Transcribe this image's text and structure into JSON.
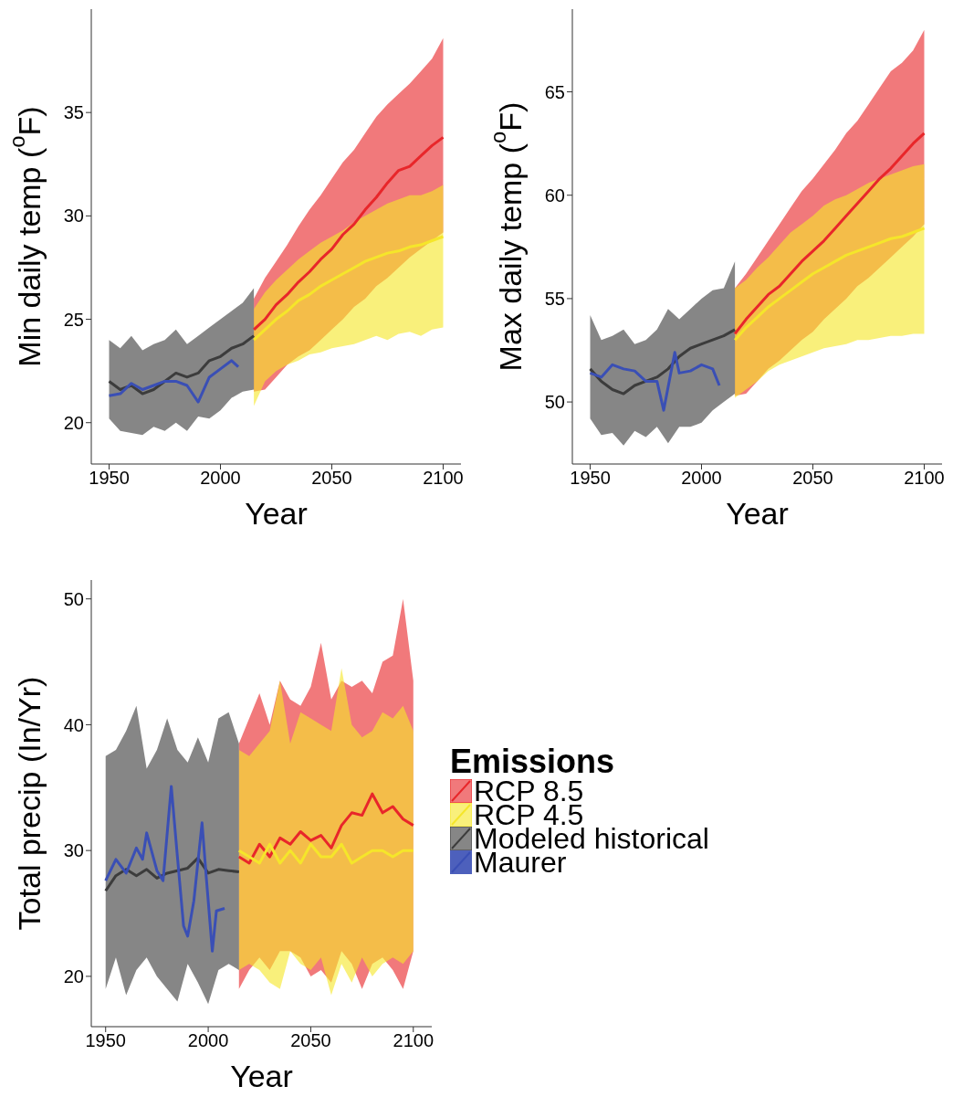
{
  "chart_data": [
    {
      "type": "line",
      "ylabel": "Min daily temp ($^{o}$F)",
      "xlabel": "Year",
      "xlim": [
        1942,
        2108
      ],
      "xticks": [
        1950,
        2000,
        2050,
        2100
      ],
      "ylim": [
        18,
        40
      ],
      "yticks": [
        20,
        25,
        30,
        35
      ],
      "series": [
        {
          "color": "#e8262a",
          "x": [
            2015,
            2020,
            2025,
            2030,
            2035,
            2040,
            2045,
            2050,
            2055,
            2060,
            2065,
            2070,
            2075,
            2080,
            2085,
            2090,
            2095,
            2100
          ],
          "values": [
            24.5,
            25.0,
            25.7,
            26.2,
            26.8,
            27.3,
            27.9,
            28.4,
            29.1,
            29.6,
            30.3,
            30.9,
            31.6,
            32.2,
            32.4,
            32.9,
            33.4,
            33.8
          ],
          "lower": [
            21.5,
            21.6,
            22.2,
            22.8,
            23.2,
            23.5,
            24.0,
            24.5,
            25.0,
            25.6,
            26.0,
            26.6,
            27.0,
            27.5,
            28.0,
            28.4,
            28.8,
            29.2
          ],
          "upper": [
            26.0,
            27.0,
            27.8,
            28.6,
            29.5,
            30.3,
            31.0,
            31.8,
            32.6,
            33.2,
            34.0,
            34.8,
            35.4,
            35.9,
            36.4,
            37.0,
            37.6,
            38.6
          ]
        },
        {
          "color": "#f5e62a",
          "x": [
            2015,
            2020,
            2025,
            2030,
            2035,
            2040,
            2045,
            2050,
            2055,
            2060,
            2065,
            2070,
            2075,
            2080,
            2085,
            2090,
            2095,
            2100
          ],
          "values": [
            24.0,
            24.5,
            25.0,
            25.4,
            25.9,
            26.2,
            26.6,
            26.9,
            27.2,
            27.5,
            27.8,
            28.0,
            28.2,
            28.3,
            28.5,
            28.6,
            28.8,
            29.0
          ],
          "lower": [
            20.8,
            22.0,
            22.5,
            22.8,
            23.0,
            23.3,
            23.4,
            23.6,
            23.7,
            23.8,
            24.0,
            24.2,
            24.0,
            24.3,
            24.4,
            24.2,
            24.5,
            24.6
          ],
          "upper": [
            25.5,
            26.3,
            26.9,
            27.4,
            27.9,
            28.3,
            28.7,
            29.0,
            29.3,
            29.7,
            30.0,
            30.3,
            30.6,
            30.8,
            31.0,
            31.0,
            31.2,
            31.5
          ]
        },
        {
          "color": "#3c3c3c",
          "x": [
            1950,
            1955,
            1960,
            1965,
            1970,
            1975,
            1980,
            1985,
            1990,
            1995,
            2000,
            2005,
            2010,
            2015
          ],
          "values": [
            22.0,
            21.6,
            21.8,
            21.4,
            21.6,
            22.0,
            22.4,
            22.2,
            22.4,
            23.0,
            23.2,
            23.6,
            23.8,
            24.2
          ],
          "lower": [
            20.2,
            19.6,
            19.5,
            19.4,
            19.8,
            19.6,
            20.0,
            19.6,
            20.3,
            20.2,
            20.6,
            21.2,
            21.5,
            21.6
          ],
          "upper": [
            24.0,
            23.6,
            24.2,
            23.5,
            23.8,
            24.0,
            24.5,
            23.8,
            24.2,
            24.6,
            25.0,
            25.4,
            25.8,
            26.5
          ]
        },
        {
          "color": "#3a4fb5",
          "x": [
            1950,
            1955,
            1960,
            1965,
            1970,
            1975,
            1980,
            1985,
            1990,
            1995,
            2000,
            2005,
            2008
          ],
          "values": [
            21.3,
            21.4,
            21.9,
            21.6,
            21.8,
            22.0,
            22.0,
            21.8,
            21.0,
            22.2,
            22.6,
            23.0,
            22.7
          ]
        }
      ]
    },
    {
      "type": "line",
      "ylabel": "Max daily temp ($^{o}$F)",
      "xlabel": "Year",
      "xlim": [
        1942,
        2108
      ],
      "xticks": [
        1950,
        2000,
        2050,
        2100
      ],
      "ylim": [
        47,
        69
      ],
      "yticks": [
        50,
        55,
        60,
        65
      ],
      "series": [
        {
          "color": "#e8262a",
          "x": [
            2015,
            2020,
            2025,
            2030,
            2035,
            2040,
            2045,
            2050,
            2055,
            2060,
            2065,
            2070,
            2075,
            2080,
            2085,
            2090,
            2095,
            2100
          ],
          "values": [
            53.3,
            54.0,
            54.6,
            55.2,
            55.6,
            56.2,
            56.8,
            57.3,
            57.8,
            58.4,
            59.0,
            59.6,
            60.2,
            60.8,
            61.3,
            61.9,
            62.5,
            63.0
          ],
          "lower": [
            50.3,
            50.4,
            51.0,
            51.6,
            52.0,
            52.5,
            53.0,
            53.4,
            54.0,
            54.5,
            55.0,
            55.6,
            56.0,
            56.5,
            57.0,
            57.5,
            58.0,
            58.6
          ],
          "upper": [
            55.5,
            56.2,
            57.0,
            57.8,
            58.6,
            59.4,
            60.2,
            60.8,
            61.5,
            62.2,
            63.0,
            63.6,
            64.4,
            65.2,
            66.0,
            66.4,
            67.0,
            68.0
          ]
        },
        {
          "color": "#f5e62a",
          "x": [
            2015,
            2020,
            2025,
            2030,
            2035,
            2040,
            2045,
            2050,
            2055,
            2060,
            2065,
            2070,
            2075,
            2080,
            2085,
            2090,
            2095,
            2100
          ],
          "values": [
            53.0,
            53.6,
            54.1,
            54.6,
            55.0,
            55.4,
            55.8,
            56.2,
            56.5,
            56.8,
            57.1,
            57.3,
            57.5,
            57.7,
            57.9,
            58.0,
            58.2,
            58.4
          ],
          "lower": [
            50.2,
            50.6,
            51.0,
            51.5,
            51.8,
            52.0,
            52.2,
            52.4,
            52.6,
            52.7,
            52.8,
            53.0,
            53.0,
            53.1,
            53.2,
            53.2,
            53.3,
            53.3
          ],
          "upper": [
            55.5,
            55.9,
            56.5,
            57.0,
            57.6,
            58.2,
            58.6,
            59.0,
            59.5,
            59.8,
            60.0,
            60.3,
            60.6,
            60.8,
            61.0,
            61.2,
            61.4,
            61.5
          ]
        },
        {
          "color": "#3c3c3c",
          "x": [
            1950,
            1955,
            1960,
            1965,
            1970,
            1975,
            1980,
            1985,
            1990,
            1995,
            2000,
            2005,
            2010,
            2015
          ],
          "values": [
            51.6,
            51.0,
            50.6,
            50.4,
            50.8,
            51.0,
            51.2,
            51.6,
            52.2,
            52.6,
            52.8,
            53.0,
            53.2,
            53.5
          ],
          "lower": [
            49.2,
            48.4,
            48.5,
            47.9,
            48.6,
            48.3,
            48.8,
            48.0,
            48.8,
            48.8,
            49.0,
            49.6,
            50.0,
            50.4
          ],
          "upper": [
            54.2,
            53.0,
            53.2,
            53.5,
            52.8,
            53.0,
            53.5,
            54.5,
            54.0,
            54.5,
            55.0,
            55.4,
            55.5,
            56.8
          ]
        },
        {
          "color": "#3a4fb5",
          "x": [
            1950,
            1955,
            1960,
            1965,
            1970,
            1975,
            1980,
            1983,
            1988,
            1990,
            1995,
            2000,
            2005,
            2008
          ],
          "values": [
            51.4,
            51.2,
            51.8,
            51.6,
            51.5,
            51.0,
            51.0,
            49.6,
            52.4,
            51.4,
            51.5,
            51.8,
            51.6,
            50.8
          ]
        }
      ]
    },
    {
      "type": "line",
      "ylabel": "Total precip (In/Yr)",
      "xlabel": "Year",
      "xlim": [
        1943,
        2109
      ],
      "xticks": [
        1950,
        2000,
        2050,
        2100
      ],
      "ylim": [
        16,
        51.5
      ],
      "yticks": [
        20,
        30,
        40,
        50
      ],
      "legend": "right",
      "legend_title": "Emissions",
      "series": [
        {
          "name": "RCP 8.5",
          "color": "#e8262a",
          "x": [
            2015,
            2020,
            2025,
            2030,
            2035,
            2040,
            2045,
            2050,
            2055,
            2060,
            2065,
            2070,
            2075,
            2080,
            2085,
            2090,
            2095,
            2100
          ],
          "values": [
            29.5,
            29.0,
            30.5,
            29.5,
            31.0,
            30.5,
            31.5,
            30.8,
            31.2,
            30.2,
            32.0,
            33.0,
            32.8,
            34.5,
            33.0,
            33.5,
            32.5,
            32.0
          ],
          "lower": [
            19.0,
            20.5,
            21.5,
            20.5,
            22.0,
            22.0,
            21.5,
            20.0,
            20.5,
            19.5,
            22.0,
            21.0,
            19.0,
            21.0,
            21.5,
            20.5,
            19.0,
            22.0
          ],
          "upper": [
            38.5,
            40.5,
            42.5,
            40.0,
            43.5,
            42.0,
            41.5,
            43.0,
            46.5,
            42.0,
            43.5,
            43.0,
            43.5,
            42.5,
            45.0,
            45.5,
            50.0,
            43.5
          ]
        },
        {
          "name": "RCP 4.5",
          "color": "#f5e62a",
          "x": [
            2015,
            2020,
            2025,
            2030,
            2035,
            2040,
            2045,
            2050,
            2055,
            2060,
            2065,
            2070,
            2075,
            2080,
            2085,
            2090,
            2095,
            2100
          ],
          "values": [
            30.0,
            29.5,
            29.0,
            30.5,
            29.0,
            30.0,
            29.0,
            30.5,
            29.5,
            29.5,
            30.5,
            29.0,
            29.5,
            30.0,
            30.0,
            29.5,
            30.0,
            30.0
          ],
          "lower": [
            20.5,
            21.0,
            20.5,
            19.5,
            19.0,
            22.0,
            21.0,
            20.5,
            21.5,
            18.5,
            21.0,
            19.5,
            21.5,
            20.0,
            21.0,
            21.5,
            21.0,
            22.0
          ],
          "upper": [
            38.0,
            37.5,
            38.5,
            39.5,
            43.5,
            38.5,
            41.0,
            40.5,
            40.0,
            39.5,
            44.5,
            40.0,
            39.0,
            39.5,
            41.0,
            40.5,
            41.5,
            39.5
          ]
        },
        {
          "name": "Modeled historical",
          "color": "#3c3c3c",
          "x": [
            1950,
            1955,
            1960,
            1965,
            1970,
            1975,
            1980,
            1985,
            1990,
            1995,
            2000,
            2005,
            2010,
            2015
          ],
          "values": [
            26.8,
            28.0,
            28.5,
            28.0,
            28.5,
            27.8,
            28.2,
            28.4,
            28.6,
            29.4,
            28.2,
            28.5,
            28.4,
            28.3
          ],
          "lower": [
            19.0,
            21.5,
            18.5,
            20.5,
            21.5,
            20.0,
            19.0,
            18.0,
            21.0,
            19.5,
            17.8,
            20.5,
            21.0,
            20.5
          ],
          "upper": [
            37.5,
            38.0,
            39.5,
            41.5,
            36.5,
            38.0,
            40.5,
            38.0,
            37.0,
            39.0,
            37.0,
            40.5,
            41.0,
            38.5
          ]
        },
        {
          "name": "Maurer",
          "color": "#3a4fb5",
          "x": [
            1950,
            1955,
            1960,
            1965,
            1968,
            1970,
            1975,
            1978,
            1982,
            1985,
            1988,
            1990,
            1993,
            1997,
            1999,
            2002,
            2004,
            2008
          ],
          "values": [
            27.6,
            29.3,
            28.2,
            30.2,
            29.3,
            31.4,
            28.4,
            27.6,
            35.1,
            29.5,
            24.0,
            23.2,
            26.0,
            32.2,
            28.0,
            22.0,
            25.2,
            25.4
          ]
        }
      ]
    }
  ]
}
